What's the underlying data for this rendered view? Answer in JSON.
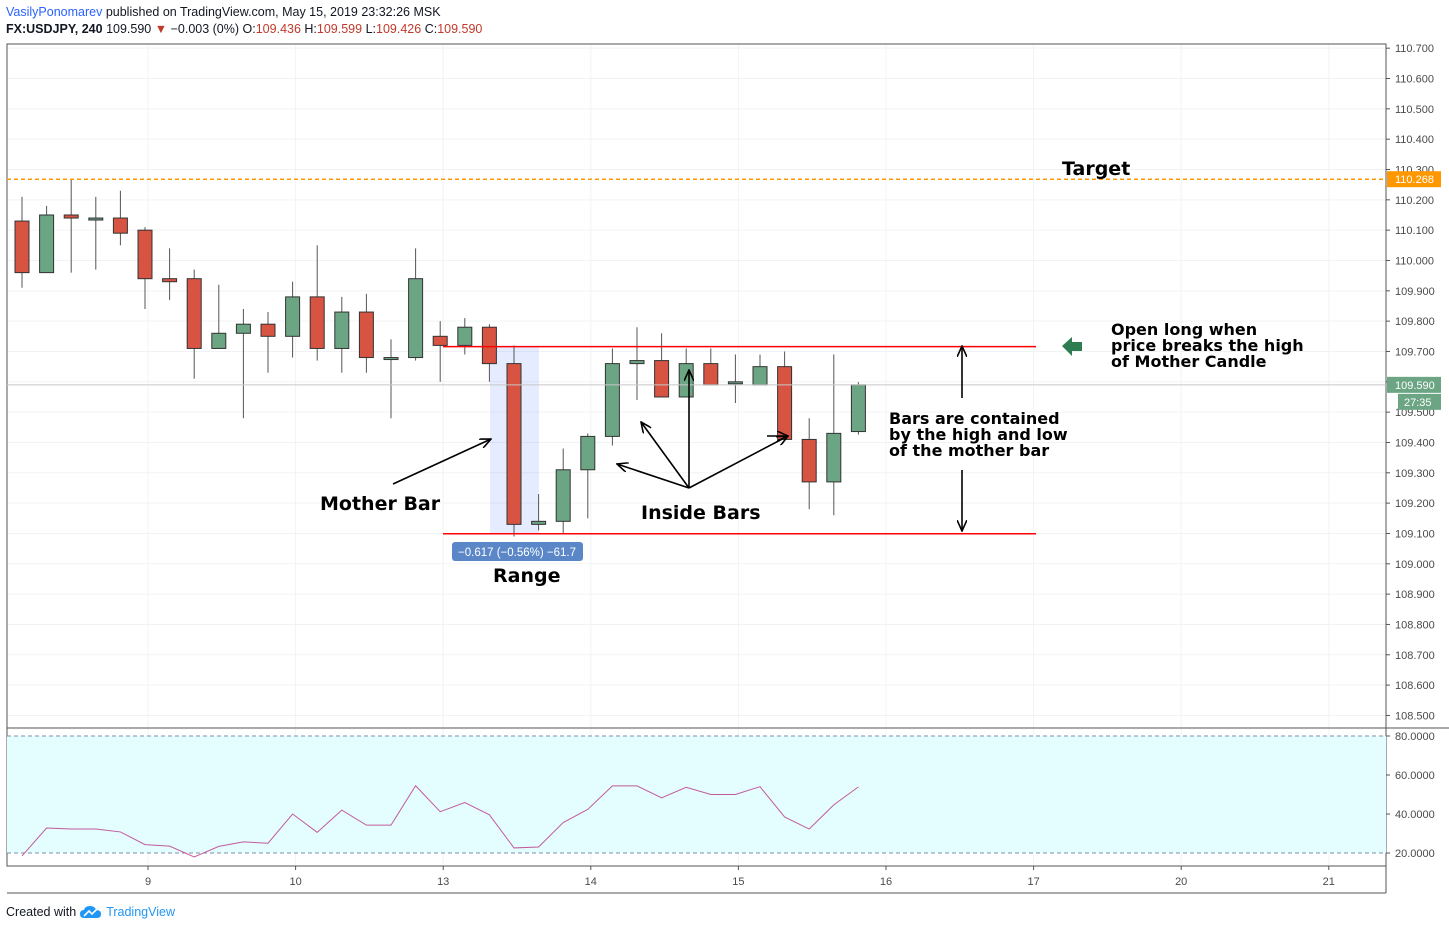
{
  "header": {
    "author": "VasilyPonomarev",
    "published": "published on TradingView.com, May 15, 2019 23:32:26 MSK",
    "symbol": "FX:USDJPY, 240",
    "last": "109.590",
    "change_arrow": "▼",
    "change": "−0.003 (0%)",
    "o_label": "O:",
    "o_value": "109.436",
    "h_label": "H:",
    "h_value": "109.599",
    "l_label": "L:",
    "l_value": "109.426",
    "c_label": "C:",
    "c_value": "109.590"
  },
  "footer": {
    "created_with": "Created with",
    "brand": "TradingView",
    "brand_icon": "tradingview-cloud-icon"
  },
  "colors": {
    "up": "#6ba583",
    "down": "#d75442",
    "target": "#ff9800",
    "level": "#ff0000",
    "last_price": "#6ba583",
    "range_box": "#2962ff",
    "rsi_line": "#c25b9b",
    "rsi_band": "#e4fdff"
  },
  "chart_data": [
    {
      "type": "candlestick",
      "title": "",
      "ylim": [
        108.45,
        110.72
      ],
      "y_ticks": [
        "110.700",
        "110.600",
        "110.500",
        "110.400",
        "110.300",
        "110.200",
        "110.100",
        "110.000",
        "109.900",
        "109.800",
        "109.700",
        "109.600",
        "109.500",
        "109.400",
        "109.300",
        "109.200",
        "109.100",
        "109.000",
        "108.900",
        "108.800",
        "108.700",
        "108.600",
        "108.500"
      ],
      "x_ticks": [
        {
          "label": "9",
          "index": 5
        },
        {
          "label": "10",
          "index": 11
        },
        {
          "label": "13",
          "index": 17
        },
        {
          "label": "14",
          "index": 23
        },
        {
          "label": "15",
          "index": 29
        },
        {
          "label": "16",
          "index": 35
        },
        {
          "label": "17",
          "index": 41
        },
        {
          "label": "20",
          "index": 47
        },
        {
          "label": "21",
          "index": 53
        }
      ],
      "candles": [
        {
          "o": 110.13,
          "h": 110.21,
          "l": 109.91,
          "c": 109.96
        },
        {
          "o": 109.96,
          "h": 110.18,
          "l": 109.96,
          "c": 110.15
        },
        {
          "o": 110.15,
          "h": 110.27,
          "l": 109.96,
          "c": 110.14
        },
        {
          "o": 110.14,
          "h": 110.21,
          "l": 109.97,
          "c": 110.14
        },
        {
          "o": 110.14,
          "h": 110.23,
          "l": 110.05,
          "c": 110.09
        },
        {
          "o": 110.1,
          "h": 110.11,
          "l": 109.84,
          "c": 109.94
        },
        {
          "o": 109.94,
          "h": 110.04,
          "l": 109.87,
          "c": 109.93
        },
        {
          "o": 109.94,
          "h": 109.97,
          "l": 109.61,
          "c": 109.71
        },
        {
          "o": 109.71,
          "h": 109.92,
          "l": 109.71,
          "c": 109.76
        },
        {
          "o": 109.76,
          "h": 109.84,
          "l": 109.48,
          "c": 109.79
        },
        {
          "o": 109.79,
          "h": 109.83,
          "l": 109.63,
          "c": 109.75
        },
        {
          "o": 109.75,
          "h": 109.93,
          "l": 109.68,
          "c": 109.88
        },
        {
          "o": 109.88,
          "h": 110.05,
          "l": 109.67,
          "c": 109.71
        },
        {
          "o": 109.71,
          "h": 109.88,
          "l": 109.63,
          "c": 109.83
        },
        {
          "o": 109.83,
          "h": 109.89,
          "l": 109.63,
          "c": 109.68
        },
        {
          "o": 109.68,
          "h": 109.74,
          "l": 109.48,
          "c": 109.68
        },
        {
          "o": 109.68,
          "h": 110.04,
          "l": 109.67,
          "c": 109.94
        },
        {
          "o": 109.75,
          "h": 109.8,
          "l": 109.6,
          "c": 109.72
        },
        {
          "o": 109.72,
          "h": 109.81,
          "l": 109.69,
          "c": 109.78
        },
        {
          "o": 109.78,
          "h": 109.79,
          "l": 109.6,
          "c": 109.66
        },
        {
          "o": 109.66,
          "h": 109.72,
          "l": 109.09,
          "c": 109.13
        },
        {
          "o": 109.13,
          "h": 109.23,
          "l": 109.11,
          "c": 109.14
        },
        {
          "o": 109.14,
          "h": 109.38,
          "l": 109.1,
          "c": 109.31
        },
        {
          "o": 109.31,
          "h": 109.43,
          "l": 109.15,
          "c": 109.42
        },
        {
          "o": 109.42,
          "h": 109.71,
          "l": 109.39,
          "c": 109.66
        },
        {
          "o": 109.66,
          "h": 109.78,
          "l": 109.54,
          "c": 109.67
        },
        {
          "o": 109.67,
          "h": 109.76,
          "l": 109.55,
          "c": 109.55
        },
        {
          "o": 109.55,
          "h": 109.71,
          "l": 109.55,
          "c": 109.66
        },
        {
          "o": 109.66,
          "h": 109.71,
          "l": 109.59,
          "c": 109.59
        },
        {
          "o": 109.6,
          "h": 109.69,
          "l": 109.53,
          "c": 109.6
        },
        {
          "o": 109.59,
          "h": 109.69,
          "l": 109.59,
          "c": 109.65
        },
        {
          "o": 109.65,
          "h": 109.7,
          "l": 109.42,
          "c": 109.41
        },
        {
          "o": 109.41,
          "h": 109.48,
          "l": 109.18,
          "c": 109.27
        },
        {
          "o": 109.27,
          "h": 109.69,
          "l": 109.16,
          "c": 109.43
        },
        {
          "o": 109.436,
          "h": 109.599,
          "l": 109.426,
          "c": 109.59
        }
      ],
      "target_level": 110.268,
      "target_label": "110.268",
      "last_price_label": "109.590",
      "countdown_label": "27:35",
      "mother_high": 109.716,
      "mother_low": 109.099,
      "range_measure": "−0.617 (−0.56%) −61.7",
      "annotations": {
        "target": "Target",
        "mother_bar": "Mother Bar",
        "inside_bars": "Inside Bars",
        "range": "Range",
        "open_long": [
          "Open long when",
          "price breaks the high",
          "of Mother Candle"
        ],
        "contained": [
          "Bars are contained",
          "by the high and low",
          "of the mother bar"
        ]
      }
    },
    {
      "type": "line",
      "title": "",
      "ylim": [
        15,
        82
      ],
      "y_ticks": [
        "80.0000",
        "60.0000",
        "40.0000",
        "20.0000"
      ],
      "bands": [
        20,
        80
      ],
      "values": [
        18.5,
        32.8,
        32.3,
        32.3,
        30.8,
        24.3,
        23.5,
        18.0,
        23.4,
        25.7,
        25.0,
        40.0,
        30.6,
        42.0,
        34.3,
        34.3,
        54.5,
        41.2,
        45.9,
        39.6,
        22.6,
        23.1,
        35.6,
        42.4,
        54.4,
        54.4,
        48.3,
        53.7,
        50.0,
        50.0,
        54.0,
        38.5,
        32.3,
        44.7,
        53.9
      ]
    }
  ]
}
